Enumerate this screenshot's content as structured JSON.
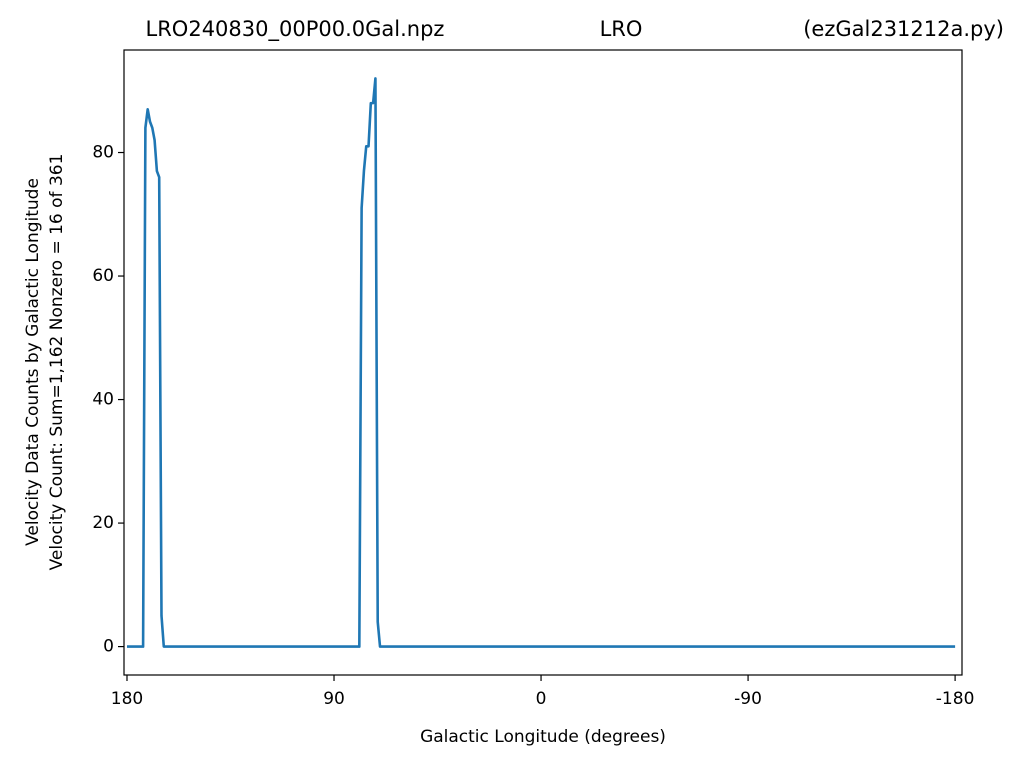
{
  "chart_data": {
    "type": "line",
    "titles": [
      "LRO240830_00P00.0Gal.npz",
      "LRO",
      "(ezGal231212a.py)"
    ],
    "xlabel": "Galactic Longitude (degrees)",
    "ylabel": [
      "Velocity Data Counts by Galactic Longitude",
      "Velocity Count: Sum=1,162 Nonzero = 16 of 361"
    ],
    "x": [
      180,
      173,
      172,
      171,
      170,
      169,
      168,
      167,
      166,
      165,
      164,
      79,
      78,
      77,
      76,
      75,
      74,
      73,
      72,
      71,
      70,
      -180
    ],
    "series": [
      {
        "name": "Velocity Count",
        "color": "#1f77b4",
        "values": [
          0,
          0,
          84,
          87,
          85,
          84,
          82,
          77,
          76,
          5,
          0,
          0,
          71,
          77,
          81,
          81,
          88,
          88,
          92,
          4,
          0,
          0
        ]
      }
    ],
    "xlim": [
      181.3,
      -183
    ],
    "ylim": [
      -4.6,
      96.6
    ],
    "xticks": [
      180,
      90,
      0,
      -90,
      -180
    ],
    "yticks": [
      0,
      20,
      40,
      60,
      80
    ],
    "grid": false
  }
}
